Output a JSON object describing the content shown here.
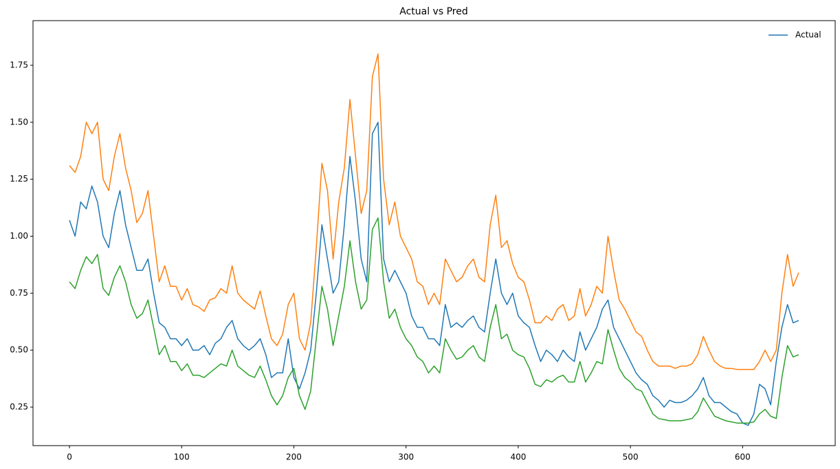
{
  "chart_data": {
    "type": "line",
    "title": "Actual vs Pred",
    "x": [
      0,
      5,
      10,
      15,
      20,
      25,
      30,
      35,
      40,
      45,
      50,
      55,
      60,
      65,
      70,
      75,
      80,
      85,
      90,
      95,
      100,
      105,
      110,
      115,
      120,
      125,
      130,
      135,
      140,
      145,
      150,
      155,
      160,
      165,
      170,
      175,
      180,
      185,
      190,
      195,
      200,
      205,
      210,
      215,
      220,
      225,
      230,
      235,
      240,
      245,
      250,
      255,
      260,
      265,
      270,
      275,
      280,
      285,
      290,
      295,
      300,
      305,
      310,
      315,
      320,
      325,
      330,
      335,
      340,
      345,
      350,
      355,
      360,
      365,
      370,
      375,
      380,
      385,
      390,
      395,
      400,
      405,
      410,
      415,
      420,
      425,
      430,
      435,
      440,
      445,
      450,
      455,
      460,
      465,
      470,
      475,
      480,
      485,
      490,
      495,
      500,
      505,
      510,
      515,
      520,
      525,
      530,
      535,
      540,
      545,
      550,
      555,
      560,
      565,
      570,
      575,
      580,
      585,
      590,
      595,
      600,
      605,
      610,
      615,
      620,
      625,
      630,
      635,
      640,
      645,
      650
    ],
    "series": [
      {
        "name": "Actual",
        "color": "#1f77b4",
        "values": [
          1.07,
          1.0,
          1.15,
          1.12,
          1.22,
          1.15,
          1.0,
          0.95,
          1.1,
          1.2,
          1.05,
          0.95,
          0.85,
          0.85,
          0.9,
          0.75,
          0.62,
          0.6,
          0.55,
          0.55,
          0.52,
          0.55,
          0.5,
          0.5,
          0.52,
          0.48,
          0.53,
          0.55,
          0.6,
          0.63,
          0.55,
          0.52,
          0.5,
          0.52,
          0.55,
          0.48,
          0.38,
          0.4,
          0.4,
          0.55,
          0.38,
          0.33,
          0.4,
          0.5,
          0.75,
          1.05,
          0.9,
          0.75,
          0.8,
          1.05,
          1.35,
          1.15,
          0.9,
          0.8,
          1.45,
          1.5,
          0.9,
          0.8,
          0.85,
          0.8,
          0.75,
          0.65,
          0.6,
          0.6,
          0.55,
          0.55,
          0.52,
          0.7,
          0.6,
          0.62,
          0.6,
          0.63,
          0.65,
          0.6,
          0.58,
          0.75,
          0.9,
          0.75,
          0.7,
          0.75,
          0.65,
          0.62,
          0.6,
          0.52,
          0.45,
          0.5,
          0.48,
          0.45,
          0.5,
          0.47,
          0.45,
          0.58,
          0.5,
          0.55,
          0.6,
          0.68,
          0.72,
          0.6,
          0.55,
          0.5,
          0.45,
          0.4,
          0.37,
          0.35,
          0.3,
          0.28,
          0.25,
          0.28,
          0.27,
          0.27,
          0.28,
          0.3,
          0.33,
          0.38,
          0.3,
          0.27,
          0.27,
          0.25,
          0.23,
          0.22,
          0.18,
          0.17,
          0.22,
          0.35,
          0.33,
          0.26,
          0.45,
          0.6,
          0.7,
          0.62,
          0.63
        ]
      },
      {
        "color": "#ff7f0e",
        "values": [
          1.31,
          1.28,
          1.35,
          1.5,
          1.45,
          1.5,
          1.25,
          1.2,
          1.35,
          1.45,
          1.3,
          1.2,
          1.06,
          1.1,
          1.2,
          1.0,
          0.8,
          0.87,
          0.78,
          0.78,
          0.72,
          0.77,
          0.7,
          0.69,
          0.67,
          0.72,
          0.73,
          0.77,
          0.75,
          0.87,
          0.75,
          0.72,
          0.7,
          0.68,
          0.76,
          0.65,
          0.55,
          0.52,
          0.57,
          0.7,
          0.75,
          0.55,
          0.5,
          0.62,
          0.95,
          1.32,
          1.2,
          0.9,
          1.15,
          1.3,
          1.6,
          1.35,
          1.1,
          1.2,
          1.7,
          1.8,
          1.25,
          1.05,
          1.15,
          1.0,
          0.95,
          0.9,
          0.8,
          0.78,
          0.7,
          0.75,
          0.7,
          0.9,
          0.85,
          0.8,
          0.82,
          0.87,
          0.9,
          0.82,
          0.8,
          1.05,
          1.18,
          0.95,
          0.98,
          0.88,
          0.82,
          0.8,
          0.72,
          0.62,
          0.62,
          0.65,
          0.63,
          0.68,
          0.7,
          0.63,
          0.65,
          0.77,
          0.65,
          0.7,
          0.78,
          0.75,
          1.0,
          0.85,
          0.72,
          0.68,
          0.63,
          0.58,
          0.56,
          0.5,
          0.45,
          0.43,
          0.43,
          0.43,
          0.42,
          0.43,
          0.43,
          0.44,
          0.48,
          0.56,
          0.5,
          0.45,
          0.43,
          0.42,
          0.42,
          0.415,
          0.415,
          0.415,
          0.415,
          0.45,
          0.5,
          0.45,
          0.5,
          0.75,
          0.92,
          0.78,
          0.84
        ]
      },
      {
        "color": "#2ca02c",
        "values": [
          0.8,
          0.77,
          0.85,
          0.91,
          0.88,
          0.92,
          0.77,
          0.74,
          0.82,
          0.87,
          0.8,
          0.7,
          0.64,
          0.66,
          0.72,
          0.6,
          0.48,
          0.52,
          0.45,
          0.45,
          0.41,
          0.44,
          0.39,
          0.39,
          0.38,
          0.4,
          0.42,
          0.44,
          0.43,
          0.5,
          0.43,
          0.41,
          0.39,
          0.38,
          0.43,
          0.37,
          0.3,
          0.26,
          0.3,
          0.38,
          0.42,
          0.3,
          0.24,
          0.32,
          0.55,
          0.78,
          0.68,
          0.52,
          0.65,
          0.78,
          0.98,
          0.8,
          0.68,
          0.72,
          1.03,
          1.08,
          0.8,
          0.64,
          0.68,
          0.6,
          0.55,
          0.52,
          0.47,
          0.45,
          0.4,
          0.43,
          0.4,
          0.55,
          0.5,
          0.46,
          0.47,
          0.5,
          0.52,
          0.47,
          0.45,
          0.6,
          0.7,
          0.55,
          0.57,
          0.5,
          0.48,
          0.47,
          0.42,
          0.35,
          0.34,
          0.37,
          0.36,
          0.38,
          0.39,
          0.36,
          0.36,
          0.45,
          0.36,
          0.4,
          0.45,
          0.44,
          0.59,
          0.5,
          0.42,
          0.38,
          0.36,
          0.33,
          0.32,
          0.27,
          0.22,
          0.2,
          0.195,
          0.19,
          0.19,
          0.19,
          0.195,
          0.2,
          0.23,
          0.29,
          0.25,
          0.21,
          0.2,
          0.19,
          0.185,
          0.18,
          0.18,
          0.18,
          0.185,
          0.22,
          0.24,
          0.21,
          0.2,
          0.38,
          0.52,
          0.47,
          0.48
        ]
      }
    ],
    "xlim": [
      -32.5,
      682.5
    ],
    "xticks": [
      0,
      100,
      200,
      300,
      400,
      500,
      600
    ],
    "ylim": [
      0.081,
      1.946
    ],
    "yticks": [
      0.25,
      {
        "value": 0.5,
        "label": "0.50"
      },
      0.75,
      {
        "value": 1,
        "label": "1.00"
      },
      1.25,
      {
        "value": 1.5,
        "label": "1.50"
      },
      1.75
    ],
    "legend": "upper right"
  }
}
